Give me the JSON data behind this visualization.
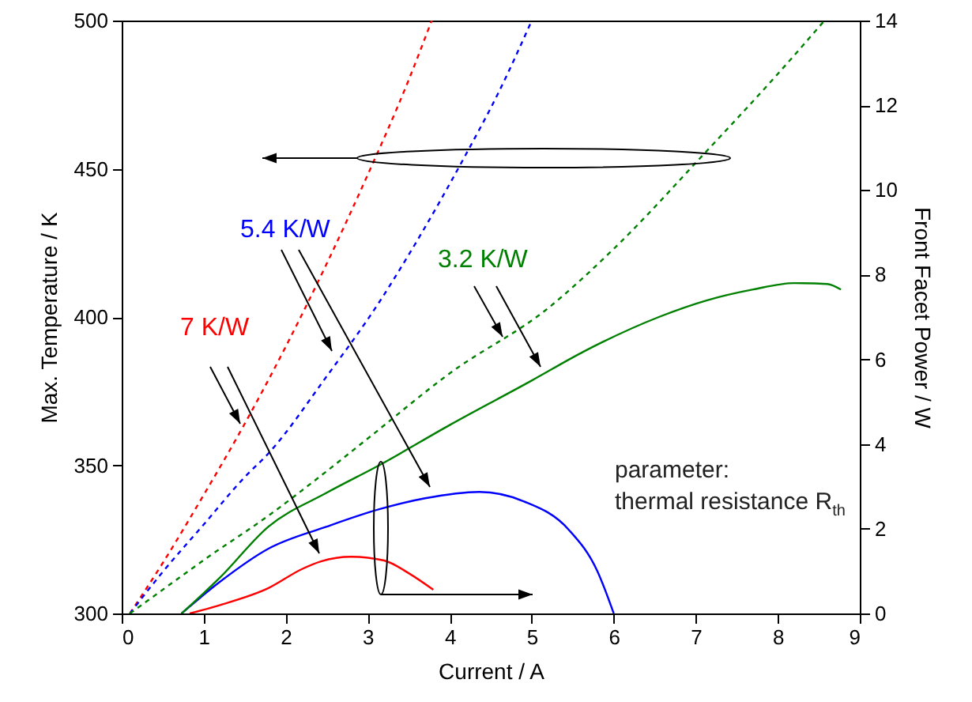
{
  "chart_data": {
    "type": "line",
    "xlabel": "Current / A",
    "ylabel": "Max. Temperature / K",
    "y2label": "Front Facet Power / W",
    "xlim": [
      0,
      9
    ],
    "xticks": [
      0,
      1,
      2,
      3,
      4,
      5,
      6,
      7,
      8,
      9
    ],
    "ylim": [
      300,
      500
    ],
    "yticks": [
      300,
      350,
      400,
      450,
      500
    ],
    "y2lim": [
      0,
      14
    ],
    "y2ticks": [
      0,
      2,
      4,
      6,
      8,
      10,
      12,
      14
    ],
    "annotations": [
      "parameter:",
      "thermal resistance R$_{th}$"
    ],
    "series": [
      {
        "name": "7 K/W",
        "color": "#ff0000",
        "line_style": "dashed",
        "x": [
          0.1,
          0.5,
          1,
          1.5,
          2,
          2.5,
          3,
          3.5,
          3.78
        ],
        "values": [
          300,
          317,
          340,
          364,
          390,
          418,
          448,
          480,
          500
        ]
      },
      {
        "name": "5.4 K/W",
        "color": "#0000ff",
        "line_style": "dashed",
        "x": [
          0.1,
          0.5,
          1,
          1.5,
          1.79,
          2.5,
          3.14,
          3.5,
          4.2,
          4.6,
          5.0
        ],
        "values": [
          300,
          314,
          330,
          346,
          354,
          380,
          405,
          421,
          455,
          476,
          500
        ]
      },
      {
        "name": "3.2 K/W",
        "color": "#008000",
        "line_style": "dashed",
        "x": [
          0.1,
          0.5,
          1,
          1.79,
          2.5,
          3,
          4,
          5.2,
          6,
          7.1,
          8,
          8.57
        ],
        "values": [
          300,
          308,
          318,
          333,
          348,
          359,
          381,
          403,
          423,
          455,
          482,
          500
        ]
      },
      {
        "color": "#ff0000",
        "line_style": "solid",
        "axis": "y2",
        "x": [
          0.83,
          1.2,
          1.79,
          2.2,
          2.43,
          2.8,
          3.2,
          3.5,
          3.8
        ],
        "values": [
          0,
          0.2,
          0.6,
          1.05,
          1.23,
          1.34,
          1.25,
          0.95,
          0.56
        ]
      },
      {
        "color": "#0000ff",
        "line_style": "solid",
        "axis": "y2",
        "x": [
          0.73,
          1.2,
          1.79,
          2.5,
          3.14,
          3.7,
          4.36,
          4.9,
          5.45,
          5.8,
          6.0
        ],
        "values": [
          0,
          0.75,
          1.53,
          2.05,
          2.46,
          2.72,
          2.87,
          2.65,
          1.98,
          1.0,
          0
        ]
      },
      {
        "color": "#008000",
        "line_style": "solid",
        "axis": "y2",
        "x": [
          0.73,
          1.2,
          1.79,
          2.5,
          3.14,
          4,
          5,
          5.64,
          6.55,
          7.13,
          7.7,
          8.2,
          8.6,
          8.77
        ],
        "values": [
          0,
          0.85,
          2.05,
          2.85,
          3.5,
          4.45,
          5.5,
          6.19,
          7.0,
          7.39,
          7.65,
          7.8,
          7.78,
          7.65
        ]
      }
    ]
  }
}
